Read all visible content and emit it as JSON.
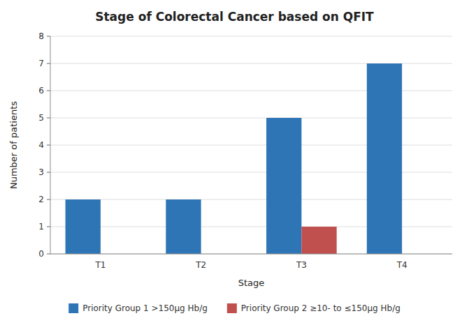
{
  "chart_data": {
    "type": "bar",
    "title": "Stage of Colorectal Cancer based on QFIT",
    "xlabel": "Stage",
    "ylabel": "Number of patients",
    "categories": [
      "T1",
      "T2",
      "T3",
      "T4"
    ],
    "series": [
      {
        "name": "Priority Group 1 >150μg Hb/g",
        "color": "#2E75B6",
        "values": [
          2,
          2,
          5,
          7
        ]
      },
      {
        "name": "Priority Group 2 ≥10- to ≤150μg Hb/g",
        "color": "#C0504D",
        "values": [
          0,
          0,
          1,
          0
        ]
      }
    ],
    "ylim": [
      0,
      8
    ],
    "yticks": [
      0,
      1,
      2,
      3,
      4,
      5,
      6,
      7,
      8
    ],
    "grid": true,
    "legend": "bottom"
  }
}
